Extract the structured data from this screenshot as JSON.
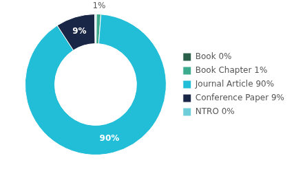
{
  "chart_data": {
    "type": "doughnut",
    "categories": [
      "Book 0%",
      "Book Chapter 1%",
      "Journal Article 90%",
      "Conference Paper 9%",
      "NTRO 0%"
    ],
    "values": [
      0.2,
      1,
      90,
      9,
      0.2
    ],
    "value_labels": [
      null,
      "1%",
      "90%",
      "9%",
      null
    ],
    "data_labels": true,
    "colors": [
      "#2a6049",
      "#3dab8e",
      "#22bdd6",
      "#1a2645",
      "#6dcdd8"
    ],
    "legend": "right"
  }
}
